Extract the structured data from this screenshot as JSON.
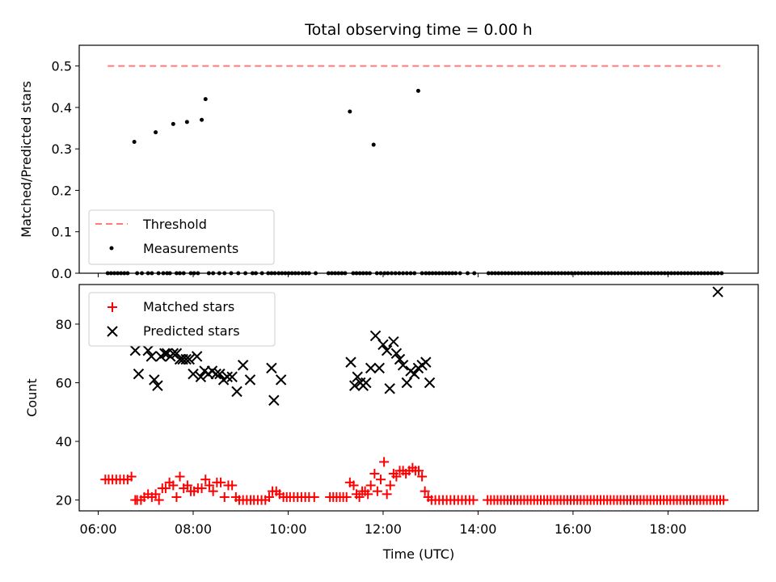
{
  "chart_data": {
    "title": "Total observing time = 0.00 h",
    "xlabel": "Time (UTC)",
    "x_unit": "hours (UTC)",
    "xlim": [
      5.6,
      19.9
    ],
    "x_ticks": [
      {
        "value": 6,
        "label": "06:00"
      },
      {
        "value": 8,
        "label": "08:00"
      },
      {
        "value": 10,
        "label": "10:00"
      },
      {
        "value": 12,
        "label": "12:00"
      },
      {
        "value": 14,
        "label": "14:00"
      },
      {
        "value": 16,
        "label": "16:00"
      },
      {
        "value": 18,
        "label": "18:00"
      }
    ],
    "panels": [
      {
        "type": "scatter",
        "ylabel": "Matched/Predicted stars",
        "ylim": [
          0,
          0.55
        ],
        "y_ticks": [
          0,
          0.1,
          0.2,
          0.3,
          0.4,
          0.5
        ],
        "y_tick_labels": [
          "0.0",
          "0.1",
          "0.2",
          "0.3",
          "0.4",
          "0.5"
        ],
        "legend_position": "lower-left",
        "series": [
          {
            "name": "Threshold",
            "style": "dashed-line",
            "color": "#ff7b7b",
            "x": [
              6.2,
              19.1
            ],
            "y": [
              0.5,
              0.5
            ]
          },
          {
            "name": "Measurements",
            "style": "dot",
            "color": "#000000",
            "x": [
              6.2,
              6.27,
              6.34,
              6.41,
              6.48,
              6.55,
              6.62,
              6.76,
              6.82,
              6.92,
              7.05,
              7.13,
              7.21,
              7.27,
              7.37,
              7.45,
              7.51,
              7.58,
              7.65,
              7.72,
              7.8,
              7.87,
              7.95,
              8.02,
              8.1,
              8.18,
              8.26,
              8.33,
              8.42,
              8.55,
              8.66,
              8.8,
              8.95,
              9.1,
              9.25,
              9.32,
              9.45,
              9.58,
              9.65,
              9.72,
              9.8,
              9.87,
              9.94,
              10.01,
              10.08,
              10.15,
              10.22,
              10.3,
              10.37,
              10.44,
              10.58,
              10.85,
              10.92,
              10.99,
              11.06,
              11.13,
              11.2,
              11.3,
              11.37,
              11.44,
              11.51,
              11.58,
              11.65,
              11.72,
              11.8,
              11.87,
              11.95,
              12.03,
              12.1,
              12.18,
              12.26,
              12.34,
              12.42,
              12.5,
              12.58,
              12.66,
              12.74,
              12.82,
              12.9,
              12.97,
              13.04,
              13.11,
              13.18,
              13.25,
              13.32,
              13.39,
              13.46,
              13.53,
              13.62,
              13.78,
              13.92,
              14.22,
              14.29,
              14.36,
              14.43,
              14.5,
              14.57,
              14.64,
              14.71,
              14.78,
              14.85,
              14.92,
              14.99,
              15.06,
              15.13,
              15.2,
              15.27,
              15.34,
              15.41,
              15.48,
              15.55,
              15.62,
              15.69,
              15.76,
              15.83,
              15.9,
              15.97,
              16.04,
              16.11,
              16.18,
              16.25,
              16.32,
              16.39,
              16.46,
              16.53,
              16.6,
              16.67,
              16.74,
              16.81,
              16.88,
              16.95,
              17.02,
              17.09,
              17.16,
              17.23,
              17.3,
              17.37,
              17.44,
              17.51,
              17.58,
              17.65,
              17.72,
              17.79,
              17.86,
              17.93,
              18.0,
              18.07,
              18.14,
              18.21,
              18.28,
              18.35,
              18.42,
              18.49,
              18.56,
              18.63,
              18.7,
              18.77,
              18.84,
              18.91,
              18.98,
              19.05,
              19.13
            ],
            "y": [
              0,
              0,
              0,
              0,
              0,
              0,
              0,
              0.317,
              0,
              0,
              0,
              0,
              0.34,
              0,
              0,
              0,
              0,
              0.36,
              0,
              0,
              0,
              0.365,
              0,
              0,
              0,
              0.37,
              0.42,
              0,
              0,
              0,
              0,
              0,
              0,
              0,
              0,
              0,
              0,
              0,
              0,
              0,
              0,
              0,
              0,
              0,
              0,
              0,
              0,
              0,
              0,
              0,
              0,
              0,
              0,
              0,
              0,
              0,
              0,
              0.39,
              0,
              0,
              0,
              0,
              0,
              0,
              0.31,
              0,
              0,
              0,
              0,
              0,
              0,
              0,
              0,
              0,
              0,
              0,
              0.44,
              0,
              0,
              0,
              0,
              0,
              0,
              0,
              0,
              0,
              0,
              0,
              0,
              0,
              0,
              0,
              0,
              0,
              0,
              0,
              0,
              0,
              0,
              0,
              0,
              0,
              0,
              0,
              0,
              0,
              0,
              0,
              0,
              0,
              0,
              0,
              0,
              0,
              0,
              0,
              0,
              0,
              0,
              0,
              0,
              0,
              0,
              0,
              0,
              0,
              0,
              0,
              0,
              0,
              0,
              0,
              0,
              0,
              0,
              0,
              0,
              0,
              0,
              0,
              0,
              0,
              0,
              0,
              0,
              0,
              0,
              0,
              0,
              0,
              0,
              0,
              0,
              0,
              0,
              0,
              0,
              0,
              0,
              0,
              0,
              0
            ]
          }
        ]
      },
      {
        "type": "scatter",
        "ylabel": "Count",
        "ylim": [
          16.3,
          93.5
        ],
        "y_ticks": [
          20,
          40,
          60,
          80
        ],
        "y_tick_labels": [
          "20",
          "40",
          "60",
          "80"
        ],
        "legend_position": "top-left",
        "series": [
          {
            "name": "Matched stars",
            "marker": "+",
            "color": "#ff0000",
            "x": [
              6.15,
              6.22,
              6.3,
              6.38,
              6.46,
              6.54,
              6.62,
              6.7,
              6.78,
              6.82,
              6.9,
              6.97,
              7.05,
              7.13,
              7.21,
              7.28,
              7.35,
              7.42,
              7.5,
              7.58,
              7.65,
              7.72,
              7.8,
              7.88,
              7.95,
              8.02,
              8.1,
              8.18,
              8.26,
              8.34,
              8.42,
              8.5,
              8.58,
              8.66,
              8.74,
              8.82,
              8.9,
              8.97,
              9.05,
              9.13,
              9.21,
              9.28,
              9.36,
              9.44,
              9.52,
              9.6,
              9.67,
              9.75,
              9.82,
              9.9,
              9.97,
              10.04,
              10.12,
              10.2,
              10.28,
              10.36,
              10.44,
              10.55,
              10.88,
              10.95,
              11.02,
              11.09,
              11.16,
              11.23,
              11.3,
              11.38,
              11.44,
              11.5,
              11.56,
              11.62,
              11.68,
              11.74,
              11.82,
              11.88,
              11.95,
              12.02,
              12.08,
              12.15,
              12.22,
              12.28,
              12.35,
              12.42,
              12.48,
              12.55,
              12.62,
              12.68,
              12.75,
              12.82,
              12.88,
              12.95,
              13.02,
              13.1,
              13.18,
              13.26,
              13.34,
              13.42,
              13.5,
              13.58,
              13.66,
              13.74,
              13.82,
              13.9,
              14.2,
              14.27,
              14.34,
              14.41,
              14.48,
              14.55,
              14.62,
              14.69,
              14.76,
              14.83,
              14.9,
              14.97,
              15.04,
              15.11,
              15.18,
              15.25,
              15.32,
              15.39,
              15.46,
              15.53,
              15.6,
              15.67,
              15.74,
              15.81,
              15.88,
              15.95,
              16.02,
              16.09,
              16.16,
              16.23,
              16.3,
              16.37,
              16.44,
              16.51,
              16.58,
              16.65,
              16.72,
              16.79,
              16.86,
              16.93,
              17.0,
              17.07,
              17.14,
              17.21,
              17.28,
              17.35,
              17.42,
              17.49,
              17.56,
              17.63,
              17.7,
              17.77,
              17.84,
              17.91,
              17.98,
              18.05,
              18.12,
              18.19,
              18.26,
              18.33,
              18.4,
              18.47,
              18.54,
              18.61,
              18.68,
              18.75,
              18.82,
              18.89,
              18.96,
              19.03,
              19.1,
              19.17
            ],
            "y": [
              27,
              27,
              27,
              27,
              27,
              27,
              27,
              28,
              20,
              20,
              20,
              21,
              22,
              21,
              22,
              20,
              24,
              24,
              26,
              25,
              21,
              28,
              24,
              25,
              23,
              23,
              24,
              24,
              27,
              25,
              23,
              26,
              26,
              21,
              25,
              25,
              21,
              20,
              20,
              20,
              20,
              20,
              20,
              20,
              20,
              21,
              23,
              23,
              22,
              21,
              21,
              21,
              21,
              21,
              21,
              21,
              21,
              21,
              21,
              21,
              21,
              21,
              21,
              21,
              26,
              25,
              22,
              21,
              23,
              23,
              22,
              25,
              29,
              23,
              27,
              33,
              22,
              25,
              29,
              28,
              30,
              30,
              29,
              30,
              31,
              30,
              30,
              28,
              23,
              21,
              20,
              20,
              20,
              20,
              20,
              20,
              20,
              20,
              20,
              20,
              20,
              20,
              20,
              20,
              20,
              20,
              20,
              20,
              20,
              20,
              20,
              20,
              20,
              20,
              20,
              20,
              20,
              20,
              20,
              20,
              20,
              20,
              20,
              20,
              20,
              20,
              20,
              20,
              20,
              20,
              20,
              20,
              20,
              20,
              20,
              20,
              20,
              20,
              20,
              20,
              20,
              20,
              20,
              20,
              20,
              20,
              20,
              20,
              20,
              20,
              20,
              20,
              20,
              20,
              20,
              20,
              20,
              20,
              20,
              20,
              20,
              20,
              20,
              20,
              20,
              20,
              20,
              20,
              20,
              20,
              20,
              20,
              20,
              20
            ]
          },
          {
            "name": "Predicted stars",
            "marker": "x",
            "color": "#000000",
            "x": [
              6.78,
              6.85,
              7.05,
              7.12,
              7.18,
              7.25,
              7.32,
              7.4,
              7.45,
              7.52,
              7.58,
              7.65,
              7.72,
              7.78,
              7.85,
              7.92,
              8.0,
              8.08,
              8.16,
              8.24,
              8.32,
              8.4,
              8.48,
              8.56,
              8.64,
              8.72,
              8.82,
              8.92,
              9.05,
              9.2,
              9.65,
              9.7,
              9.85,
              11.32,
              11.4,
              11.46,
              11.52,
              11.58,
              11.64,
              11.74,
              11.84,
              11.92,
              12.0,
              12.08,
              12.14,
              12.22,
              12.28,
              12.35,
              12.42,
              12.5,
              12.58,
              12.66,
              12.74,
              12.82,
              12.9,
              12.98,
              19.05
            ],
            "y": [
              71,
              63,
              71,
              69,
              61,
              59,
              69,
              70,
              70,
              69,
              70,
              70,
              68,
              68,
              68,
              68,
              63,
              69,
              62,
              64,
              63,
              64,
              63,
              63,
              61,
              62,
              62,
              57,
              66,
              61,
              65,
              54,
              61,
              67,
              59,
              62,
              60,
              59,
              60,
              65,
              76,
              65,
              73,
              71,
              58,
              74,
              70,
              68,
              66,
              60,
              64,
              63,
              65,
              66,
              67,
              60,
              91
            ]
          }
        ]
      }
    ]
  }
}
